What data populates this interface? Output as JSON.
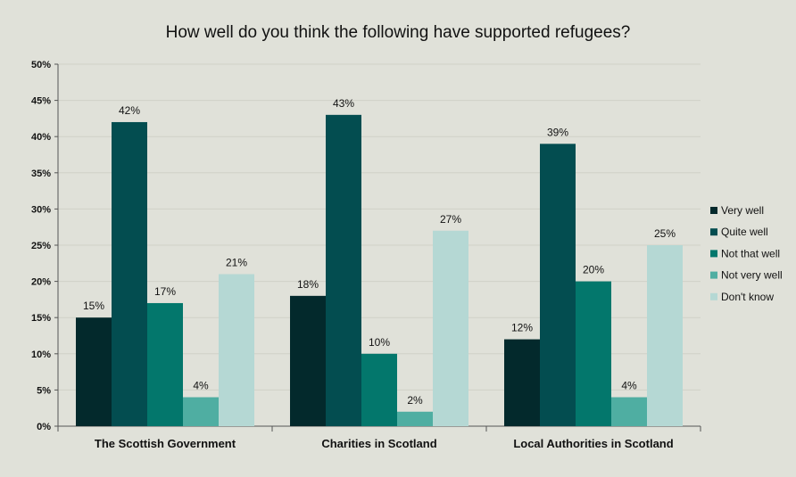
{
  "chart_data": {
    "type": "bar",
    "title": "How well do you think the following have supported refugees?",
    "categories": [
      "The Scottish Government",
      "Charities in Scotland",
      "Local Authorities in Scotland"
    ],
    "series": [
      {
        "name": "Very well",
        "color": "#03292c",
        "values": [
          15,
          18,
          12
        ]
      },
      {
        "name": "Quite well",
        "color": "#034d50",
        "values": [
          42,
          43,
          39
        ]
      },
      {
        "name": "Not that well",
        "color": "#03776c",
        "values": [
          17,
          10,
          20
        ]
      },
      {
        "name": "Not very well",
        "color": "#4faea2",
        "values": [
          4,
          2,
          4
        ]
      },
      {
        "name": "Don't know",
        "color": "#b5d8d4",
        "values": [
          21,
          27,
          25
        ]
      }
    ],
    "ylim": [
      0,
      50
    ],
    "yticks": [
      0,
      5,
      10,
      15,
      20,
      25,
      30,
      35,
      40,
      45,
      50
    ],
    "ytick_labels": [
      "0%",
      "5%",
      "10%",
      "15%",
      "20%",
      "25%",
      "30%",
      "35%",
      "40%",
      "45%",
      "50%"
    ],
    "value_suffix": "%",
    "grid": true,
    "legend_position": "right"
  }
}
